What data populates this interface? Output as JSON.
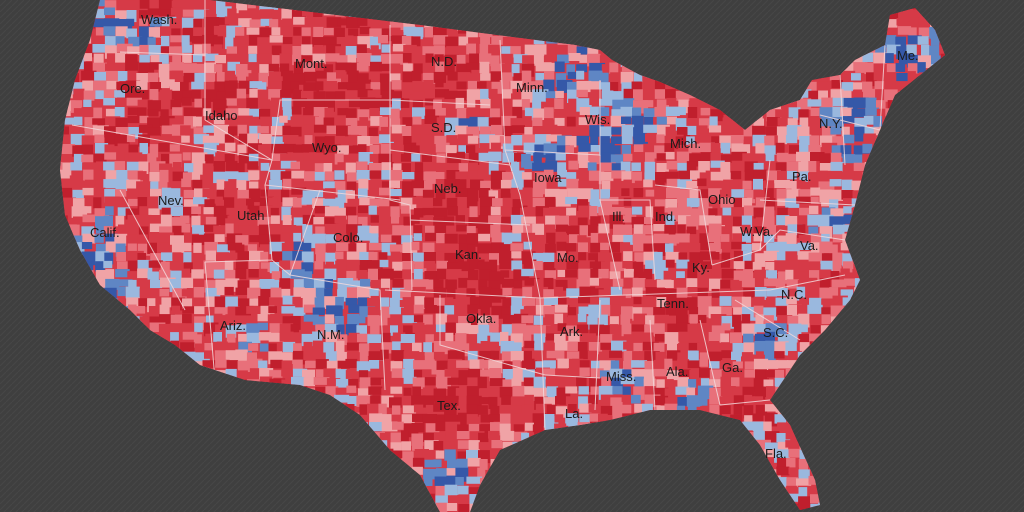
{
  "map": {
    "colors": {
      "background": "#3f3f3f",
      "dark_red": "#c01f2d",
      "red": "#d63a47",
      "light_red": "#e8707a",
      "pink": "#f0a3a6",
      "light_blue": "#9ab8de",
      "blue": "#5f86c4",
      "dark_blue": "#3558a8",
      "border": "#f2d9dc"
    },
    "labels": {
      "wash": "Wash.",
      "ore": "Ore.",
      "calif": "Calif.",
      "idaho": "Idaho",
      "nev": "Nev.",
      "mont": "Mont.",
      "wyo": "Wyo.",
      "utah": "Utah",
      "ariz": "Ariz.",
      "colo": "Colo.",
      "nm": "N.M.",
      "nd": "N.D.",
      "sd": "S.D.",
      "neb": "Neb.",
      "kan": "Kan.",
      "okla": "Okla.",
      "tex": "Tex.",
      "minn": "Minn.",
      "iowa": "Iowa",
      "mo": "Mo.",
      "ark": "Ark.",
      "la": "La.",
      "wis": "Wis.",
      "ill": "Ill.",
      "mich": "Mich.",
      "ind": "Ind.",
      "ohio": "Ohio",
      "ky": "Ky.",
      "tenn": "Tenn.",
      "miss": "Miss.",
      "ala": "Ala.",
      "ga": "Ga.",
      "fla": "Fla.",
      "sc": "S.C.",
      "nc": "N.C.",
      "va": "Va.",
      "wva": "W.Va.",
      "pa": "Pa.",
      "ny": "N.Y.",
      "me": "Me."
    }
  }
}
